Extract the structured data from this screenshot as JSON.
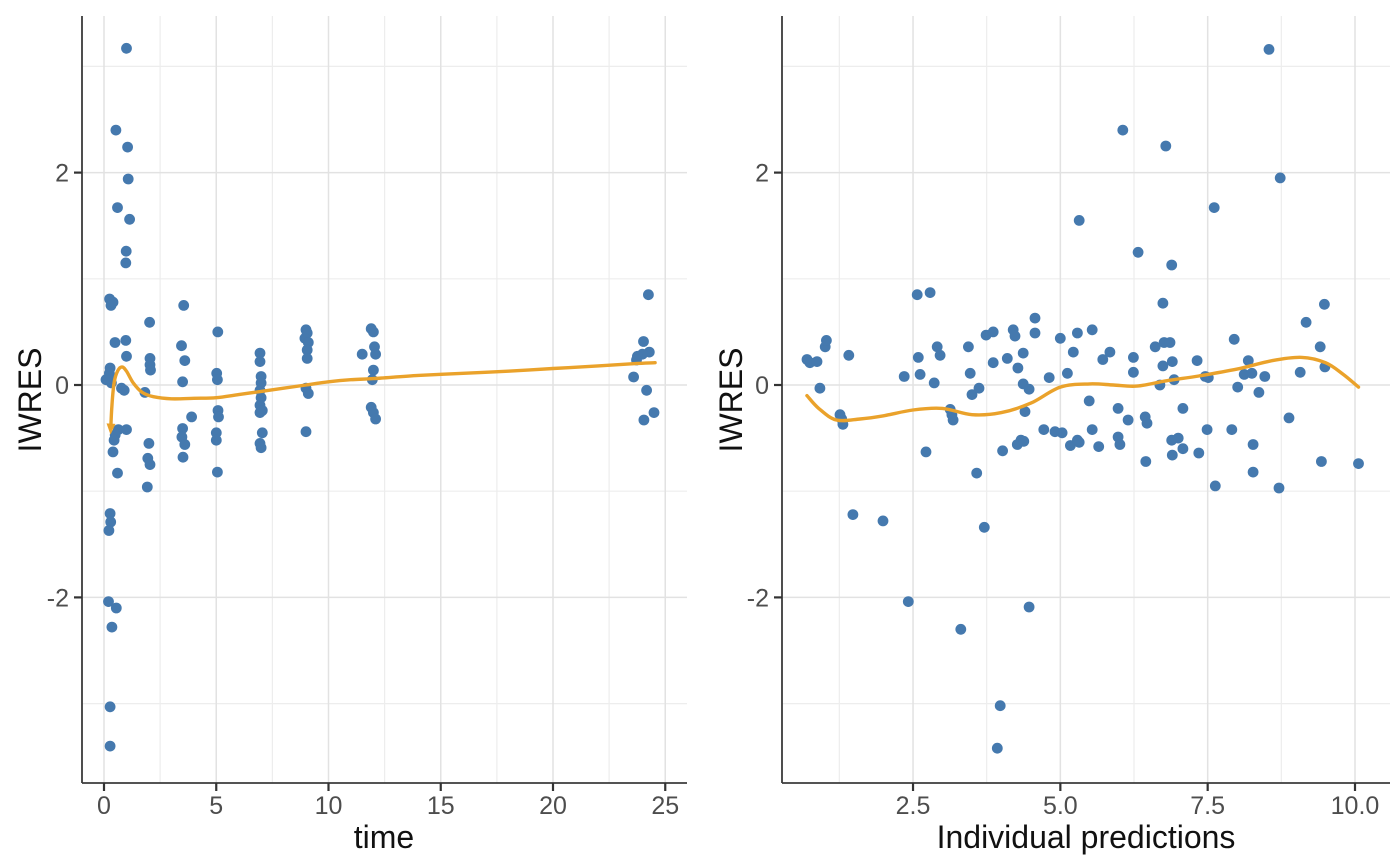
{
  "figure": {
    "description": "Two-panel residual diagnostic scatter plots of IWRES versus time and versus individual predictions, with orange loess smooth lines",
    "background": "#ffffff"
  },
  "palette": {
    "point_color": "#4579AE",
    "smooth_color": "#EAA22B",
    "grid_major": "#E2E2E2",
    "grid_minor": "#EDEDED",
    "axis_line": "#3B3B3B",
    "tick_mark": "#333333",
    "tick_text": "#4D4D4D",
    "title_text": "#111111"
  },
  "chart_data": [
    {
      "type": "scatter",
      "title": "",
      "xlabel": "time",
      "ylabel": "IWRES",
      "legend": "none",
      "grid": "on",
      "xlim": [
        -0.98,
        25.97
      ],
      "ylim": [
        -3.75,
        3.47
      ],
      "x_ticks": {
        "values": [
          0,
          5,
          10,
          15,
          20,
          25
        ],
        "labels": [
          "0",
          "5",
          "10",
          "15",
          "20",
          "25"
        ]
      },
      "x_minor": [
        2.5,
        7.5,
        12.5,
        17.5,
        22.5
      ],
      "y_ticks": {
        "values": [
          -2,
          0,
          2
        ],
        "labels": [
          "-2",
          "0",
          "2"
        ]
      },
      "y_minor": [
        -3,
        -1,
        1,
        3
      ],
      "smooth_arrow_start": true,
      "points": [
        [
          1.0,
          3.17
        ],
        [
          0.53,
          2.4
        ],
        [
          1.05,
          2.24
        ],
        [
          1.08,
          1.94
        ],
        [
          0.6,
          1.67
        ],
        [
          1.14,
          1.56
        ],
        [
          0.99,
          1.26
        ],
        [
          0.97,
          1.15
        ],
        [
          0.25,
          0.81
        ],
        [
          0.31,
          0.75
        ],
        [
          0.4,
          0.78
        ],
        [
          3.55,
          0.75
        ],
        [
          2.03,
          0.59
        ],
        [
          5.07,
          0.5
        ],
        [
          0.49,
          0.4
        ],
        [
          0.97,
          0.42
        ],
        [
          1.0,
          0.27
        ],
        [
          0.27,
          0.16
        ],
        [
          0.24,
          0.11
        ],
        [
          0.31,
          0.07
        ],
        [
          0.09,
          0.05
        ],
        [
          0.33,
          0.02
        ],
        [
          0.78,
          -0.03
        ],
        [
          0.9,
          -0.05
        ],
        [
          0.64,
          -0.42
        ],
        [
          1.0,
          -0.42
        ],
        [
          0.5,
          -0.47
        ],
        [
          0.45,
          -0.52
        ],
        [
          0.4,
          -0.63
        ],
        [
          0.6,
          -0.83
        ],
        [
          0.27,
          -1.21
        ],
        [
          0.3,
          -1.29
        ],
        [
          0.22,
          -1.37
        ],
        [
          0.2,
          -2.04
        ],
        [
          0.55,
          -2.1
        ],
        [
          0.35,
          -2.28
        ],
        [
          0.27,
          -3.03
        ],
        [
          0.27,
          -3.4
        ],
        [
          2.05,
          0.25
        ],
        [
          2.05,
          0.19
        ],
        [
          2.07,
          0.14
        ],
        [
          1.82,
          -0.07
        ],
        [
          2.0,
          -0.55
        ],
        [
          1.95,
          -0.69
        ],
        [
          2.05,
          -0.75
        ],
        [
          1.93,
          -0.96
        ],
        [
          3.45,
          0.37
        ],
        [
          3.6,
          0.23
        ],
        [
          3.5,
          0.03
        ],
        [
          3.9,
          -0.3
        ],
        [
          3.5,
          -0.41
        ],
        [
          3.47,
          -0.49
        ],
        [
          3.6,
          -0.56
        ],
        [
          3.52,
          -0.68
        ],
        [
          5.02,
          0.11
        ],
        [
          5.05,
          0.05
        ],
        [
          5.08,
          -0.24
        ],
        [
          5.1,
          -0.3
        ],
        [
          5.0,
          -0.45
        ],
        [
          5.0,
          -0.52
        ],
        [
          5.05,
          -0.82
        ],
        [
          6.95,
          0.3
        ],
        [
          6.95,
          0.22
        ],
        [
          7.0,
          0.08
        ],
        [
          7.0,
          0.02
        ],
        [
          6.95,
          -0.05
        ],
        [
          7.0,
          -0.12
        ],
        [
          6.95,
          -0.19
        ],
        [
          7.05,
          -0.24
        ],
        [
          6.95,
          -0.26
        ],
        [
          7.05,
          -0.45
        ],
        [
          6.95,
          -0.55
        ],
        [
          7.0,
          -0.59
        ],
        [
          9.0,
          0.52
        ],
        [
          9.05,
          0.49
        ],
        [
          8.95,
          0.44
        ],
        [
          9.1,
          0.4
        ],
        [
          9.05,
          0.33
        ],
        [
          9.05,
          0.25
        ],
        [
          9.0,
          -0.03
        ],
        [
          9.1,
          -0.08
        ],
        [
          9.0,
          -0.44
        ],
        [
          11.5,
          0.29
        ],
        [
          11.9,
          0.53
        ],
        [
          12.0,
          0.5
        ],
        [
          12.05,
          0.36
        ],
        [
          12.1,
          0.29
        ],
        [
          12.0,
          0.14
        ],
        [
          11.95,
          0.05
        ],
        [
          11.9,
          -0.21
        ],
        [
          12.0,
          -0.26
        ],
        [
          12.1,
          -0.32
        ],
        [
          24.25,
          0.85
        ],
        [
          24.03,
          0.41
        ],
        [
          24.29,
          0.31
        ],
        [
          23.98,
          0.29
        ],
        [
          23.76,
          0.27
        ],
        [
          23.72,
          0.235
        ],
        [
          23.59,
          0.075
        ],
        [
          24.17,
          -0.05
        ],
        [
          24.5,
          -0.26
        ],
        [
          24.05,
          -0.33
        ]
      ],
      "smooth": [
        [
          0.3,
          -0.42
        ],
        [
          0.35,
          -0.2
        ],
        [
          0.45,
          0.02
        ],
        [
          0.6,
          0.13
        ],
        [
          0.8,
          0.17
        ],
        [
          1.0,
          0.13
        ],
        [
          1.3,
          0.02
        ],
        [
          1.7,
          -0.07
        ],
        [
          2.2,
          -0.11
        ],
        [
          3.0,
          -0.13
        ],
        [
          4.0,
          -0.125
        ],
        [
          5.0,
          -0.12
        ],
        [
          6.0,
          -0.09
        ],
        [
          7.0,
          -0.06
        ],
        [
          8.0,
          -0.03
        ],
        [
          9.0,
          0.0
        ],
        [
          10.0,
          0.03
        ],
        [
          11.0,
          0.05
        ],
        [
          12.0,
          0.06
        ],
        [
          14.0,
          0.09
        ],
        [
          16.0,
          0.11
        ],
        [
          18.0,
          0.13
        ],
        [
          20.0,
          0.155
        ],
        [
          22.0,
          0.18
        ],
        [
          23.5,
          0.2
        ],
        [
          24.55,
          0.21
        ]
      ]
    },
    {
      "type": "scatter",
      "title": "",
      "xlabel": "Individual predictions",
      "ylabel": "IWRES",
      "legend": "none",
      "grid": "on",
      "xlim": [
        0.28,
        10.6
      ],
      "ylim": [
        -3.75,
        3.47
      ],
      "x_ticks": {
        "values": [
          2.5,
          5.0,
          7.5,
          10.0
        ],
        "labels": [
          "2.5",
          "5.0",
          "7.5",
          "10.0"
        ]
      },
      "x_minor": [
        1.25,
        3.75,
        6.25,
        8.75
      ],
      "y_ticks": {
        "values": [
          -2,
          0,
          2
        ],
        "labels": [
          "-2",
          "0",
          "2"
        ]
      },
      "y_minor": [
        -3,
        -1,
        1,
        3
      ],
      "smooth_arrow_start": false,
      "points": [
        [
          8.54,
          3.16
        ],
        [
          6.06,
          2.4
        ],
        [
          6.79,
          2.25
        ],
        [
          8.73,
          1.95
        ],
        [
          7.61,
          1.67
        ],
        [
          5.32,
          1.55
        ],
        [
          6.32,
          1.25
        ],
        [
          6.89,
          1.13
        ],
        [
          2.57,
          0.85
        ],
        [
          2.79,
          0.87
        ],
        [
          6.74,
          0.77
        ],
        [
          9.48,
          0.76
        ],
        [
          9.17,
          0.59
        ],
        [
          0.7,
          0.24
        ],
        [
          0.75,
          0.21
        ],
        [
          0.87,
          0.22
        ],
        [
          0.92,
          -0.03
        ],
        [
          1.01,
          0.36
        ],
        [
          1.03,
          0.42
        ],
        [
          1.41,
          0.28
        ],
        [
          1.26,
          -0.28
        ],
        [
          1.29,
          -0.32
        ],
        [
          1.31,
          -0.37
        ],
        [
          2.35,
          0.08
        ],
        [
          2.59,
          0.26
        ],
        [
          2.62,
          0.1
        ],
        [
          2.86,
          0.02
        ],
        [
          2.91,
          0.36
        ],
        [
          2.96,
          0.28
        ],
        [
          2.72,
          -0.63
        ],
        [
          3.13,
          -0.23
        ],
        [
          3.16,
          -0.28
        ],
        [
          3.18,
          -0.33
        ],
        [
          3.44,
          0.36
        ],
        [
          3.47,
          0.11
        ],
        [
          3.5,
          -0.09
        ],
        [
          3.62,
          -0.03
        ],
        [
          3.58,
          -0.83
        ],
        [
          3.74,
          0.47
        ],
        [
          3.86,
          0.5
        ],
        [
          3.86,
          0.21
        ],
        [
          3.71,
          -1.34
        ],
        [
          4.1,
          0.25
        ],
        [
          4.2,
          0.52
        ],
        [
          4.23,
          0.46
        ],
        [
          4.28,
          0.16
        ],
        [
          4.37,
          0.3
        ],
        [
          4.37,
          0.01
        ],
        [
          4.47,
          -0.04
        ],
        [
          4.4,
          -0.25
        ],
        [
          4.33,
          -0.52
        ],
        [
          4.27,
          -0.56
        ],
        [
          4.57,
          0.63
        ],
        [
          4.57,
          0.49
        ],
        [
          4.72,
          -0.42
        ],
        [
          4.81,
          0.07
        ],
        [
          4.91,
          -0.44
        ],
        [
          4.02,
          -0.62
        ],
        [
          4.38,
          -0.53
        ],
        [
          5.0,
          0.44
        ],
        [
          5.03,
          -0.45
        ],
        [
          5.22,
          0.31
        ],
        [
          5.12,
          0.11
        ],
        [
          5.17,
          -0.57
        ],
        [
          5.29,
          0.49
        ],
        [
          5.29,
          -0.52
        ],
        [
          5.32,
          -0.54
        ],
        [
          5.49,
          -0.15
        ],
        [
          5.54,
          0.52
        ],
        [
          5.54,
          -0.42
        ],
        [
          5.65,
          -0.58
        ],
        [
          5.72,
          0.24
        ],
        [
          5.84,
          0.31
        ],
        [
          5.98,
          -0.22
        ],
        [
          5.98,
          -0.49
        ],
        [
          6.01,
          -0.56
        ],
        [
          6.15,
          -0.33
        ],
        [
          6.24,
          0.26
        ],
        [
          6.24,
          0.12
        ],
        [
          6.44,
          -0.3
        ],
        [
          6.47,
          -0.36
        ],
        [
          6.45,
          -0.72
        ],
        [
          6.61,
          0.36
        ],
        [
          6.76,
          0.4
        ],
        [
          6.86,
          0.4
        ],
        [
          6.74,
          0.18
        ],
        [
          6.69,
          0.0
        ],
        [
          6.9,
          0.22
        ],
        [
          6.93,
          0.05
        ],
        [
          6.89,
          -0.52
        ],
        [
          6.9,
          -0.66
        ],
        [
          7.0,
          -0.5
        ],
        [
          7.08,
          -0.6
        ],
        [
          7.08,
          -0.22
        ],
        [
          7.32,
          0.23
        ],
        [
          7.35,
          -0.64
        ],
        [
          7.46,
          0.08
        ],
        [
          7.51,
          0.07
        ],
        [
          7.49,
          -0.42
        ],
        [
          7.63,
          -0.95
        ],
        [
          7.95,
          0.43
        ],
        [
          7.91,
          -0.42
        ],
        [
          8.01,
          -0.02
        ],
        [
          8.12,
          0.1
        ],
        [
          8.19,
          0.23
        ],
        [
          8.25,
          0.11
        ],
        [
          8.27,
          -0.56
        ],
        [
          8.27,
          -0.82
        ],
        [
          8.37,
          -0.07
        ],
        [
          8.47,
          0.08
        ],
        [
          8.71,
          -0.97
        ],
        [
          8.88,
          -0.31
        ],
        [
          9.07,
          0.12
        ],
        [
          9.41,
          0.36
        ],
        [
          9.49,
          0.17
        ],
        [
          9.43,
          -0.72
        ],
        [
          10.06,
          -0.74
        ],
        [
          1.48,
          -1.22
        ],
        [
          1.99,
          -1.28
        ],
        [
          2.42,
          -2.04
        ],
        [
          3.31,
          -2.3
        ],
        [
          4.47,
          -2.09
        ],
        [
          3.98,
          -3.02
        ],
        [
          3.93,
          -3.42
        ]
      ],
      "smooth": [
        [
          0.7,
          -0.1
        ],
        [
          0.9,
          -0.22
        ],
        [
          1.2,
          -0.33
        ],
        [
          1.6,
          -0.32
        ],
        [
          2.0,
          -0.29
        ],
        [
          2.5,
          -0.235
        ],
        [
          3.0,
          -0.22
        ],
        [
          3.5,
          -0.28
        ],
        [
          4.0,
          -0.26
        ],
        [
          4.5,
          -0.17
        ],
        [
          5.0,
          -0.02
        ],
        [
          5.5,
          0.01
        ],
        [
          5.9,
          0.0
        ],
        [
          6.3,
          -0.01
        ],
        [
          6.8,
          0.04
        ],
        [
          7.35,
          0.085
        ],
        [
          8.0,
          0.15
        ],
        [
          8.6,
          0.23
        ],
        [
          9.1,
          0.26
        ],
        [
          9.5,
          0.21
        ],
        [
          9.8,
          0.1
        ],
        [
          10.06,
          -0.02
        ]
      ]
    }
  ]
}
